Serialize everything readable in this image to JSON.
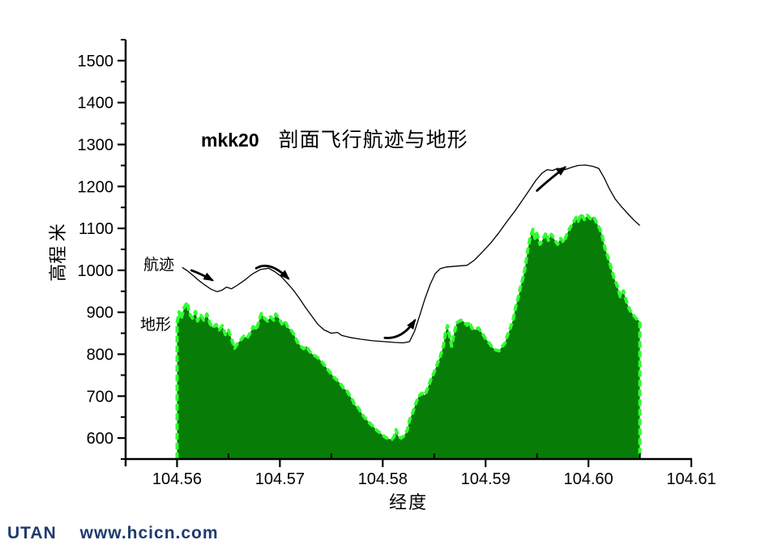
{
  "title": {
    "id": "mkk20",
    "text": "剖面飞行航迹与地形"
  },
  "axes": {
    "x_label": "经度",
    "y_label": "高程 米"
  },
  "annotations": {
    "track": "航迹",
    "terrain": "地形"
  },
  "watermark": {
    "brand": "UTAN",
    "url": "www.hcicn.com"
  },
  "colors": {
    "axis": "#000000",
    "track_line": "#000000",
    "terrain_fill": "#077d07",
    "terrain_edge": "#2eff2e",
    "watermark": "#1e3b6d"
  },
  "chart_data": {
    "type": "area",
    "title": "mkk20 剖面飞行航迹与地形",
    "xlabel": "经度",
    "ylabel": "高程 米",
    "xlim": [
      104.555,
      104.61
    ],
    "ylim": [
      550,
      1550
    ],
    "grid": false,
    "x_major_ticks": [
      104.56,
      104.57,
      104.58,
      104.59,
      104.6,
      104.61
    ],
    "x_major_tick_labels": [
      "104.56",
      "104.57",
      "104.58",
      "104.59",
      "104.60",
      "104.61"
    ],
    "x_minor_ticks": [
      104.555,
      104.565,
      104.575,
      104.585,
      104.595,
      104.605
    ],
    "y_major_ticks": [
      600,
      700,
      800,
      900,
      1000,
      1100,
      1200,
      1300,
      1400,
      1500
    ],
    "y_major_tick_labels": [
      "600",
      "700",
      "800",
      "900",
      "1000",
      "1100",
      "1200",
      "1300",
      "1400",
      "1500"
    ],
    "y_minor_ticks": [
      550,
      650,
      750,
      850,
      950,
      1050,
      1150,
      1250,
      1350,
      1450,
      1550
    ],
    "series": [
      {
        "name": "地形",
        "type": "area",
        "baseline": 550,
        "fill": "#077d07",
        "edge": "#2eff2e",
        "edge_style": "dashed",
        "points": [
          [
            104.56,
            875
          ],
          [
            104.5602,
            901
          ],
          [
            104.5604,
            884
          ],
          [
            104.5607,
            912
          ],
          [
            104.561,
            924
          ],
          [
            104.5612,
            897
          ],
          [
            104.5615,
            886
          ],
          [
            104.5618,
            902
          ],
          [
            104.562,
            879
          ],
          [
            104.5623,
            893
          ],
          [
            104.5626,
            881
          ],
          [
            104.5629,
            896
          ],
          [
            104.5632,
            873
          ],
          [
            104.5635,
            863
          ],
          [
            104.5638,
            871
          ],
          [
            104.5641,
            858
          ],
          [
            104.5644,
            868
          ],
          [
            104.5647,
            847
          ],
          [
            104.565,
            857
          ],
          [
            104.5653,
            836
          ],
          [
            104.5656,
            814
          ],
          [
            104.5659,
            826
          ],
          [
            104.5662,
            834
          ],
          [
            104.5665,
            843
          ],
          [
            104.5668,
            838
          ],
          [
            104.5671,
            850
          ],
          [
            104.5674,
            866
          ],
          [
            104.5677,
            858
          ],
          [
            104.568,
            882
          ],
          [
            104.5682,
            897
          ],
          [
            104.5685,
            886
          ],
          [
            104.5688,
            879
          ],
          [
            104.5691,
            889
          ],
          [
            104.5694,
            881
          ],
          [
            104.5696,
            896
          ],
          [
            104.5699,
            886
          ],
          [
            104.5702,
            872
          ],
          [
            104.5705,
            879
          ],
          [
            104.5708,
            863
          ],
          [
            104.5711,
            857
          ],
          [
            104.5714,
            846
          ],
          [
            104.5717,
            829
          ],
          [
            104.572,
            820
          ],
          [
            104.5723,
            813
          ],
          [
            104.5726,
            819
          ],
          [
            104.5729,
            806
          ],
          [
            104.5732,
            799
          ],
          [
            104.5735,
            795
          ],
          [
            104.5738,
            789
          ],
          [
            104.5741,
            781
          ],
          [
            104.5744,
            772
          ],
          [
            104.5747,
            762
          ],
          [
            104.575,
            753
          ],
          [
            104.5753,
            744
          ],
          [
            104.5756,
            737
          ],
          [
            104.5759,
            729
          ],
          [
            104.5762,
            719
          ],
          [
            104.5765,
            713
          ],
          [
            104.5768,
            701
          ],
          [
            104.5771,
            689
          ],
          [
            104.5773,
            678
          ],
          [
            104.5776,
            673
          ],
          [
            104.5779,
            661
          ],
          [
            104.5782,
            650
          ],
          [
            104.5785,
            642
          ],
          [
            104.5788,
            634
          ],
          [
            104.5791,
            627
          ],
          [
            104.5794,
            619
          ],
          [
            104.5797,
            613
          ],
          [
            104.58,
            607
          ],
          [
            104.5803,
            601
          ],
          [
            104.5806,
            598
          ],
          [
            104.5809,
            597
          ],
          [
            104.5811,
            603
          ],
          [
            104.5813,
            620
          ],
          [
            104.5815,
            604
          ],
          [
            104.5818,
            600
          ],
          [
            104.5821,
            606
          ],
          [
            104.5824,
            620
          ],
          [
            104.5826,
            643
          ],
          [
            104.5829,
            660
          ],
          [
            104.5832,
            682
          ],
          [
            104.5835,
            700
          ],
          [
            104.5838,
            707
          ],
          [
            104.5841,
            702
          ],
          [
            104.5844,
            721
          ],
          [
            104.5847,
            741
          ],
          [
            104.585,
            757
          ],
          [
            104.5853,
            776
          ],
          [
            104.5856,
            795
          ],
          [
            104.5859,
            820
          ],
          [
            104.5861,
            852
          ],
          [
            104.5863,
            868
          ],
          [
            104.5867,
            819
          ],
          [
            104.5869,
            845
          ],
          [
            104.5872,
            875
          ],
          [
            104.5876,
            881
          ],
          [
            104.5879,
            877
          ],
          [
            104.5882,
            869
          ],
          [
            104.5884,
            877
          ],
          [
            104.5887,
            861
          ],
          [
            104.589,
            858
          ],
          [
            104.5893,
            863
          ],
          [
            104.5896,
            852
          ],
          [
            104.59,
            837
          ],
          [
            104.5904,
            825
          ],
          [
            104.5907,
            815
          ],
          [
            104.591,
            810
          ],
          [
            104.5913,
            808
          ],
          [
            104.5916,
            818
          ],
          [
            104.5919,
            827
          ],
          [
            104.5921,
            843
          ],
          [
            104.5924,
            862
          ],
          [
            104.5927,
            884
          ],
          [
            104.5929,
            910
          ],
          [
            104.5932,
            938
          ],
          [
            104.5934,
            960
          ],
          [
            104.5937,
            988
          ],
          [
            104.5939,
            1015
          ],
          [
            104.5941,
            1048
          ],
          [
            104.5943,
            1075
          ],
          [
            104.5946,
            1098
          ],
          [
            104.5948,
            1076
          ],
          [
            104.595,
            1088
          ],
          [
            104.5953,
            1062
          ],
          [
            104.5956,
            1076
          ],
          [
            104.5959,
            1090
          ],
          [
            104.5961,
            1071
          ],
          [
            104.5964,
            1086
          ],
          [
            104.5967,
            1073
          ],
          [
            104.597,
            1062
          ],
          [
            104.5973,
            1076
          ],
          [
            104.5976,
            1066
          ],
          [
            104.5979,
            1086
          ],
          [
            104.5982,
            1101
          ],
          [
            104.5985,
            1113
          ],
          [
            104.5988,
            1126
          ],
          [
            104.599,
            1117
          ],
          [
            104.5993,
            1135
          ],
          [
            104.5996,
            1121
          ],
          [
            104.5999,
            1131
          ],
          [
            104.6002,
            1123
          ],
          [
            104.6005,
            1128
          ],
          [
            104.6008,
            1113
          ],
          [
            104.6011,
            1099
          ],
          [
            104.6013,
            1086
          ],
          [
            104.6016,
            1053
          ],
          [
            104.6019,
            1031
          ],
          [
            104.6022,
            1006
          ],
          [
            104.6025,
            981
          ],
          [
            104.6028,
            963
          ],
          [
            104.6031,
            937
          ],
          [
            104.6034,
            951
          ],
          [
            104.6037,
            926
          ],
          [
            104.604,
            906
          ],
          [
            104.6044,
            892
          ],
          [
            104.6047,
            884
          ],
          [
            104.605,
            878
          ]
        ]
      },
      {
        "name": "航迹",
        "type": "line",
        "color": "#000000",
        "points": [
          [
            104.5605,
            1007
          ],
          [
            104.561,
            999
          ],
          [
            104.5615,
            989
          ],
          [
            104.5621,
            976
          ],
          [
            104.5627,
            965
          ],
          [
            104.5633,
            955
          ],
          [
            104.5639,
            949
          ],
          [
            104.5644,
            953
          ],
          [
            104.5648,
            960
          ],
          [
            104.5653,
            956
          ],
          [
            104.5659,
            965
          ],
          [
            104.5666,
            977
          ],
          [
            104.5673,
            991
          ],
          [
            104.5681,
            1002
          ],
          [
            104.5689,
            1005
          ],
          [
            104.5695,
            997
          ],
          [
            104.5701,
            986
          ],
          [
            104.5707,
            970
          ],
          [
            104.5713,
            953
          ],
          [
            104.5719,
            933
          ],
          [
            104.5725,
            911
          ],
          [
            104.5731,
            891
          ],
          [
            104.5737,
            871
          ],
          [
            104.5743,
            858
          ],
          [
            104.575,
            850
          ],
          [
            104.5756,
            852
          ],
          [
            104.576,
            845
          ],
          [
            104.5768,
            840
          ],
          [
            104.5778,
            836
          ],
          [
            104.579,
            832
          ],
          [
            104.5802,
            830
          ],
          [
            104.5812,
            828
          ],
          [
            104.582,
            827
          ],
          [
            104.5826,
            830
          ],
          [
            104.5831,
            855
          ],
          [
            104.5836,
            893
          ],
          [
            104.5841,
            932
          ],
          [
            104.5846,
            966
          ],
          [
            104.5851,
            992
          ],
          [
            104.5856,
            1004
          ],
          [
            104.5862,
            1008
          ],
          [
            104.5872,
            1010
          ],
          [
            104.5882,
            1012
          ],
          [
            104.5889,
            1024
          ],
          [
            104.5897,
            1044
          ],
          [
            104.5905,
            1065
          ],
          [
            104.5913,
            1090
          ],
          [
            104.5921,
            1117
          ],
          [
            104.5929,
            1143
          ],
          [
            104.5936,
            1168
          ],
          [
            104.5943,
            1193
          ],
          [
            104.5949,
            1215
          ],
          [
            104.5955,
            1232
          ],
          [
            104.596,
            1240
          ],
          [
            104.5965,
            1238
          ],
          [
            104.597,
            1243
          ],
          [
            104.5977,
            1240
          ],
          [
            104.5984,
            1246
          ],
          [
            104.599,
            1250
          ],
          [
            104.5997,
            1251
          ],
          [
            104.6004,
            1248
          ],
          [
            104.601,
            1243
          ],
          [
            104.6015,
            1222
          ],
          [
            104.602,
            1196
          ],
          [
            104.6026,
            1170
          ],
          [
            104.6032,
            1152
          ],
          [
            104.6038,
            1136
          ],
          [
            104.6044,
            1120
          ],
          [
            104.605,
            1107
          ]
        ]
      }
    ],
    "arrows": [
      {
        "tail": [
          104.5614,
          1000
        ],
        "ctrl": [
          104.5623,
          992
        ],
        "head": [
          104.5634,
          977
        ]
      },
      {
        "tail": [
          104.5677,
          1005
        ],
        "ctrl": [
          104.569,
          1024
        ],
        "head": [
          104.5708,
          981
        ]
      },
      {
        "tail": [
          104.5802,
          839
        ],
        "ctrl": [
          104.5819,
          835
        ],
        "head": [
          104.5831,
          880
        ]
      },
      {
        "tail": [
          104.595,
          1190
        ],
        "ctrl": [
          104.596,
          1213
        ],
        "head": [
          104.5977,
          1245
        ]
      }
    ],
    "legend_position": "none"
  }
}
